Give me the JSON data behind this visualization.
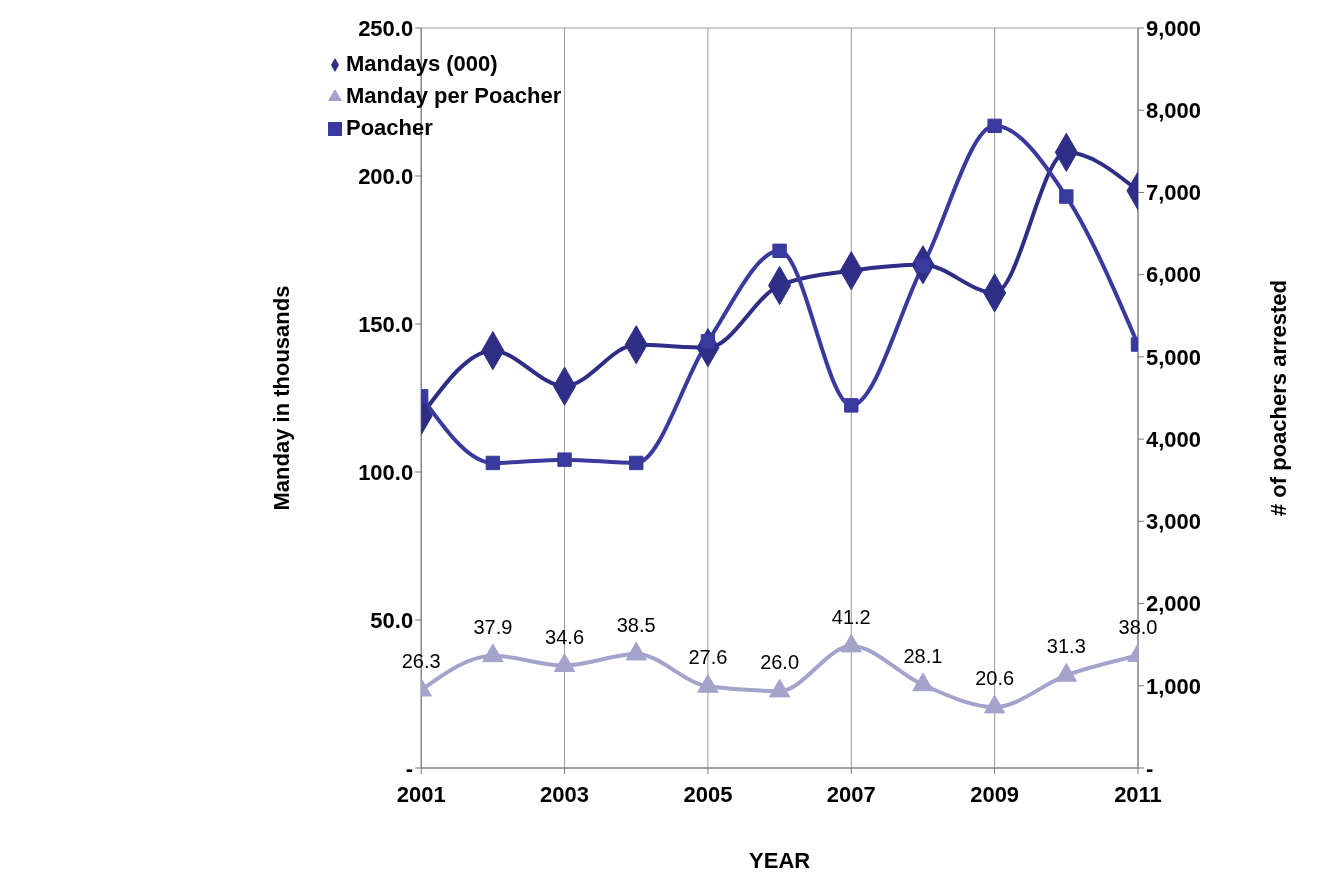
{
  "chart_data": {
    "type": "line",
    "xlabel": "YEAR",
    "ylabel": "Manday  in thousands",
    "y2label": "# of poachers arrested",
    "x": [
      2001,
      2002,
      2003,
      2004,
      2005,
      2006,
      2007,
      2008,
      2009,
      2010,
      2011
    ],
    "xlim": [
      2001,
      2011
    ],
    "xticks": [
      2001,
      2003,
      2005,
      2007,
      2009,
      2011
    ],
    "ylim": [
      0,
      250
    ],
    "yticks": [
      {
        "value": 0,
        "label": "-"
      },
      {
        "value": 50,
        "label": "50.0"
      },
      {
        "value": 100,
        "label": "100.0"
      },
      {
        "value": 150,
        "label": "150.0"
      },
      {
        "value": 200,
        "label": "200.0"
      },
      {
        "value": 250,
        "label": "250.0"
      }
    ],
    "y2lim": [
      0,
      9000
    ],
    "y2ticks": [
      {
        "value": 0,
        "label": "-"
      },
      {
        "value": 1000,
        "label": "1,000"
      },
      {
        "value": 2000,
        "label": "2,000"
      },
      {
        "value": 3000,
        "label": "3,000"
      },
      {
        "value": 4000,
        "label": "4,000"
      },
      {
        "value": 5000,
        "label": "5,000"
      },
      {
        "value": 6000,
        "label": "6,000"
      },
      {
        "value": 7000,
        "label": "7,000"
      },
      {
        "value": 8000,
        "label": "8,000"
      },
      {
        "value": 9000,
        "label": "9,000"
      }
    ],
    "grid": true,
    "legend": "top left",
    "line_style": "solid",
    "series": [
      {
        "name": "Mandays  (000)",
        "color": "#2e2e86",
        "marker": "diamond",
        "values": [
          119,
          141,
          129,
          143,
          142,
          163,
          168,
          170,
          160.5,
          208,
          195
        ]
      },
      {
        "name": "Manday per Poacher",
        "color": "#a3a3cc",
        "marker": "triangle",
        "data_labels": true,
        "values": [
          26.3,
          37.9,
          34.6,
          38.5,
          27.6,
          26.0,
          41.2,
          28.1,
          20.6,
          31.3,
          38.0
        ],
        "value_labels": [
          "26.3",
          "37.9",
          "34.6",
          "38.5",
          "27.6",
          "26.0",
          "41.2",
          "28.1",
          "20.6",
          "31.3",
          "38.0"
        ]
      },
      {
        "name": "Poacher",
        "color": "#3a3a9e",
        "marker": "square",
        "axis": "y2",
        "values": [
          4520,
          3710,
          3750,
          3710,
          5190,
          6290,
          4410,
          6110,
          7810,
          6950,
          5150
        ]
      }
    ]
  }
}
